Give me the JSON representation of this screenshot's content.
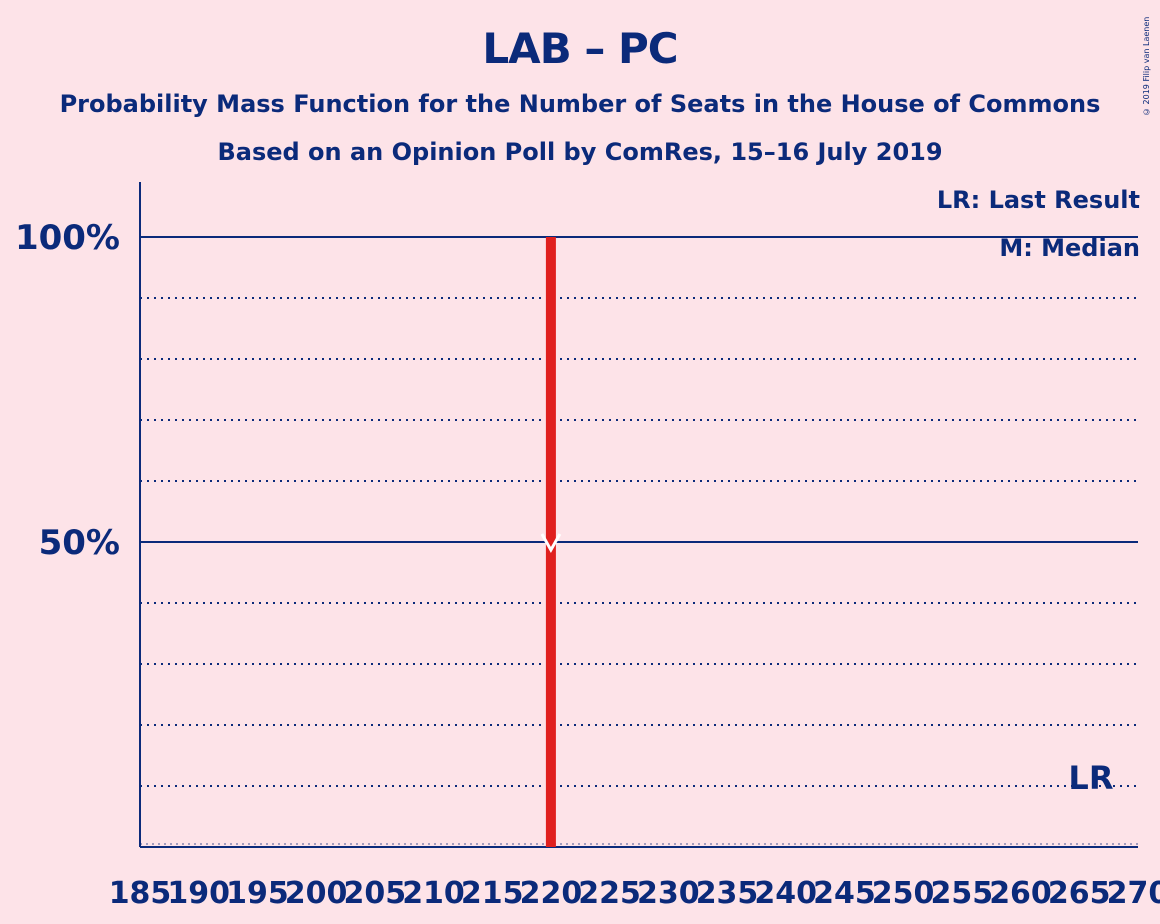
{
  "chart_data": {
    "type": "bar",
    "title": "LAB – PC",
    "subtitle": "Probability Mass Function for the Number of Seats in the House of Commons",
    "source": "Based on an Opinion Poll by ComRes, 15–16 July 2019",
    "copyright": "© 2019 Filip van Laenen",
    "legend": [
      "LR: Last Result",
      "M: Median"
    ],
    "legend_position": "top-right",
    "x_ticks": [
      "185",
      "190",
      "195",
      "200",
      "205",
      "210",
      "215",
      "220",
      "225",
      "230",
      "235",
      "240",
      "245",
      "250",
      "255",
      "260",
      "265",
      "270"
    ],
    "xlim": [
      185,
      270
    ],
    "y_ticks": [
      "50%",
      "100%"
    ],
    "ylim": [
      0,
      1.09
    ],
    "grid": true,
    "bars": [
      {
        "x": 220,
        "value": 1.0
      }
    ],
    "median": 220,
    "last_result": 266,
    "last_result_label": "LR",
    "colors": {
      "background": "#fde3e8",
      "axis": "#0b2a7a",
      "bar": "#e0201e"
    }
  }
}
